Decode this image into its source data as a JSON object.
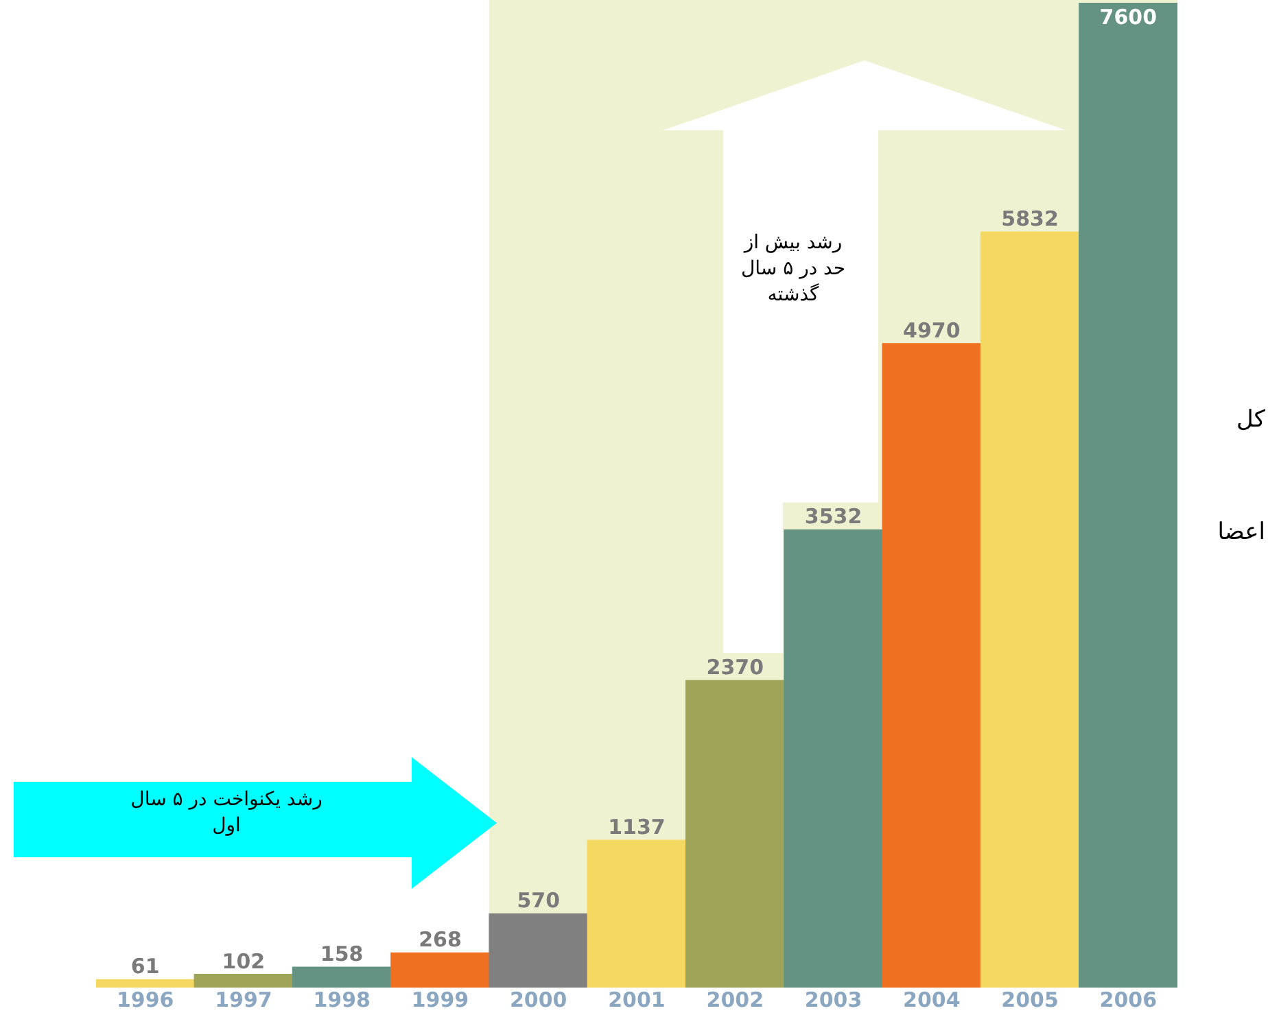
{
  "chart_data": {
    "type": "bar",
    "categories": [
      "1996",
      "1997",
      "1998",
      "1999",
      "2000",
      "2001",
      "2002",
      "2003",
      "2004",
      "2005",
      "2006"
    ],
    "values": [
      61,
      102,
      158,
      268,
      570,
      1137,
      2370,
      3532,
      4970,
      5832,
      7600
    ],
    "colors": [
      "#f5d862",
      "#a0a458",
      "#659383",
      "#f07022",
      "#808080",
      "#f5d862",
      "#a0a458",
      "#659383",
      "#f07022",
      "#f5d862",
      "#659383"
    ],
    "bands": [
      {
        "axis": "x",
        "from": "2000",
        "to": "2006",
        "color": "#eef2d0"
      }
    ],
    "data_labels": true,
    "grid": false,
    "legend": false,
    "annotations": [
      "رشد بیش از حد در ۵ سال گذشته",
      "رشد یکنواخت در ۵ سال اول",
      "کل",
      "اعضا"
    ]
  }
}
